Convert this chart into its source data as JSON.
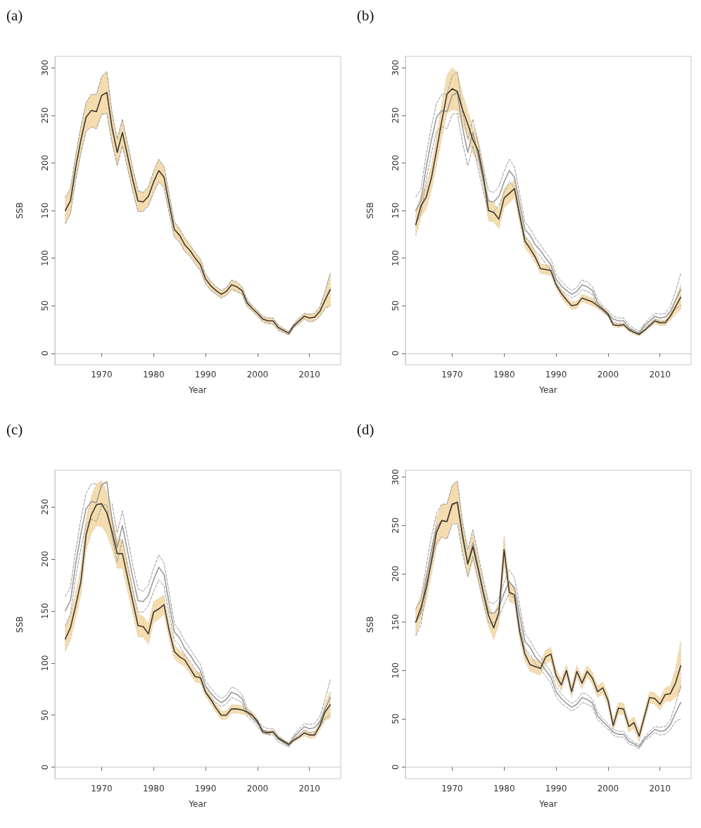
{
  "chart_data": [
    {
      "type": "line",
      "title": "(a)",
      "xlabel": "Year",
      "ylabel": "SSB",
      "xlim": [
        1961,
        2016
      ],
      "xticks": [
        1970,
        1980,
        1990,
        2000,
        2010
      ],
      "ylim": [
        -12,
        312
      ],
      "yticks": [
        0,
        50,
        100,
        150,
        200,
        250,
        300
      ],
      "marker": "none",
      "x": [
        1963,
        1964,
        1965,
        1966,
        1967,
        1968,
        1969,
        1970,
        1971,
        1972,
        1973,
        1974,
        1975,
        1976,
        1977,
        1978,
        1979,
        1980,
        1981,
        1982,
        1983,
        1984,
        1985,
        1986,
        1987,
        1988,
        1989,
        1990,
        1991,
        1992,
        1993,
        1994,
        1995,
        1996,
        1997,
        1998,
        1999,
        2000,
        2001,
        2002,
        2003,
        2004,
        2005,
        2006,
        2007,
        2008,
        2009,
        2010,
        2011,
        2012,
        2013,
        2014
      ],
      "series": [
        {
          "color": "#9a9a9a",
          "line_style": "dashed",
          "values": [
            136,
            147,
            182,
            210,
            233,
            238,
            236,
            251,
            252,
            221,
            197,
            218,
            194,
            170,
            149,
            149,
            155,
            169,
            180,
            174,
            147,
            122,
            117,
            107,
            102,
            94,
            87,
            73,
            66,
            62,
            58,
            61,
            67,
            65,
            62,
            49,
            44,
            39,
            33,
            31,
            31,
            24,
            22,
            19,
            27,
            31,
            36,
            33,
            34,
            39,
            47,
            50
          ]
        },
        {
          "color": "#9a9a9a",
          "line_style": "dashed",
          "values": [
            164,
            173,
            208,
            238,
            263,
            272,
            272,
            291,
            296,
            253,
            225,
            246,
            220,
            194,
            171,
            169,
            175,
            191,
            204,
            196,
            167,
            138,
            131,
            121,
            114,
            106,
            99,
            83,
            76,
            70,
            66,
            69,
            77,
            75,
            70,
            57,
            50,
            45,
            39,
            37,
            37,
            30,
            26,
            23,
            31,
            37,
            42,
            41,
            42,
            49,
            65,
            84
          ]
        },
        {
          "color": "#3b3631",
          "values": [
            150,
            160,
            195,
            224,
            248,
            255,
            254,
            271,
            274,
            237,
            211,
            232,
            207,
            182,
            160,
            159,
            165,
            180,
            192,
            185,
            157,
            130,
            124,
            114,
            108,
            100,
            93,
            78,
            71,
            66,
            62,
            65,
            72,
            70,
            66,
            53,
            47,
            42,
            36,
            34,
            34,
            27,
            24,
            21,
            29,
            34,
            39,
            37,
            38,
            44,
            56,
            67
          ],
          "lower": [
            136,
            147,
            182,
            210,
            233,
            238,
            236,
            251,
            252,
            221,
            197,
            218,
            194,
            170,
            149,
            149,
            155,
            169,
            180,
            174,
            147,
            122,
            117,
            107,
            102,
            94,
            87,
            73,
            66,
            62,
            58,
            61,
            67,
            65,
            62,
            49,
            44,
            39,
            33,
            31,
            31,
            24,
            22,
            19,
            27,
            31,
            36,
            33,
            34,
            39,
            47,
            50
          ],
          "upper": [
            164,
            173,
            208,
            238,
            263,
            272,
            272,
            291,
            296,
            253,
            225,
            246,
            220,
            194,
            171,
            169,
            175,
            191,
            204,
            196,
            167,
            138,
            131,
            121,
            114,
            106,
            99,
            83,
            76,
            70,
            66,
            69,
            77,
            75,
            70,
            57,
            50,
            45,
            39,
            37,
            37,
            30,
            26,
            23,
            31,
            37,
            42,
            41,
            42,
            49,
            65,
            84
          ]
        }
      ]
    },
    {
      "type": "line",
      "title": "(b)",
      "xlabel": "Year",
      "ylabel": "SSB",
      "xlim": [
        1961,
        2016
      ],
      "xticks": [
        1970,
        1980,
        1990,
        2000,
        2010
      ],
      "ylim": [
        -12,
        312
      ],
      "yticks": [
        0,
        50,
        100,
        150,
        200,
        250,
        300
      ],
      "marker": "none",
      "x": [
        1963,
        1964,
        1965,
        1966,
        1967,
        1968,
        1969,
        1970,
        1971,
        1972,
        1973,
        1974,
        1975,
        1976,
        1977,
        1978,
        1979,
        1980,
        1981,
        1982,
        1983,
        1984,
        1985,
        1986,
        1987,
        1988,
        1989,
        1990,
        1991,
        1992,
        1993,
        1994,
        1995,
        1996,
        1997,
        1998,
        1999,
        2000,
        2001,
        2002,
        2003,
        2004,
        2005,
        2006,
        2007,
        2008,
        2009,
        2010,
        2011,
        2012,
        2013,
        2014
      ],
      "series": [
        {
          "color": "#9a9a9a",
          "line_style": "dashed",
          "values": [
            136,
            147,
            182,
            210,
            233,
            238,
            236,
            251,
            252,
            221,
            197,
            218,
            194,
            170,
            149,
            149,
            155,
            169,
            180,
            174,
            147,
            122,
            117,
            107,
            102,
            94,
            87,
            73,
            66,
            62,
            58,
            61,
            67,
            65,
            62,
            49,
            44,
            39,
            33,
            31,
            31,
            24,
            22,
            19,
            27,
            31,
            36,
            33,
            34,
            39,
            47,
            50
          ]
        },
        {
          "color": "#9a9a9a",
          "line_style": "dashed",
          "values": [
            164,
            173,
            208,
            238,
            263,
            272,
            272,
            291,
            296,
            253,
            225,
            246,
            220,
            194,
            171,
            169,
            175,
            191,
            204,
            196,
            167,
            138,
            131,
            121,
            114,
            106,
            99,
            83,
            76,
            70,
            66,
            69,
            77,
            75,
            70,
            57,
            50,
            45,
            39,
            37,
            37,
            30,
            26,
            23,
            31,
            37,
            42,
            41,
            42,
            49,
            65,
            84
          ]
        },
        {
          "color": "#9a9a9a",
          "values": [
            150,
            160,
            195,
            224,
            248,
            255,
            254,
            271,
            274,
            237,
            211,
            232,
            207,
            182,
            160,
            159,
            165,
            180,
            192,
            185,
            157,
            130,
            124,
            114,
            108,
            100,
            93,
            78,
            71,
            66,
            62,
            65,
            72,
            70,
            66,
            53,
            47,
            42,
            36,
            34,
            34,
            27,
            24,
            21,
            29,
            34,
            39,
            37,
            38,
            44,
            56,
            67
          ]
        },
        {
          "color": "#3b3631",
          "values": [
            135,
            155,
            164,
            184,
            213,
            244,
            272,
            278,
            275,
            256,
            241,
            224,
            213,
            186,
            150,
            148,
            141,
            163,
            168,
            173,
            145,
            118,
            110,
            101,
            89,
            88,
            87,
            72,
            63,
            56,
            50,
            51,
            58,
            56,
            54,
            50,
            46,
            41,
            30,
            29,
            30,
            25,
            22,
            20,
            24,
            29,
            34,
            32,
            32,
            39,
            49,
            59
          ],
          "lower": [
            123,
            143,
            152,
            171,
            198,
            226,
            252,
            256,
            255,
            240,
            227,
            210,
            200,
            174,
            139,
            138,
            131,
            153,
            158,
            164,
            137,
            111,
            104,
            95,
            84,
            83,
            82,
            68,
            59,
            52,
            46,
            47,
            54,
            52,
            50,
            47,
            43,
            38,
            28,
            27,
            28,
            23,
            20,
            18,
            22,
            27,
            31,
            29,
            29,
            35,
            41,
            46
          ],
          "upper": [
            147,
            167,
            176,
            197,
            228,
            262,
            292,
            300,
            295,
            272,
            255,
            238,
            226,
            198,
            161,
            158,
            151,
            173,
            178,
            182,
            153,
            125,
            116,
            107,
            94,
            93,
            92,
            76,
            67,
            60,
            54,
            55,
            62,
            60,
            58,
            53,
            49,
            44,
            32,
            31,
            32,
            27,
            24,
            22,
            26,
            31,
            37,
            35,
            35,
            43,
            57,
            72
          ]
        }
      ]
    },
    {
      "type": "line",
      "title": "(c)",
      "xlabel": "Year",
      "ylabel": "SSB",
      "xlim": [
        1961,
        2016
      ],
      "xticks": [
        1970,
        1980,
        1990,
        2000,
        2010
      ],
      "ylim": [
        -11,
        285
      ],
      "yticks": [
        0,
        50,
        100,
        150,
        200,
        250
      ],
      "marker": "none",
      "x": [
        1963,
        1964,
        1965,
        1966,
        1967,
        1968,
        1969,
        1970,
        1971,
        1972,
        1973,
        1974,
        1975,
        1976,
        1977,
        1978,
        1979,
        1980,
        1981,
        1982,
        1983,
        1984,
        1985,
        1986,
        1987,
        1988,
        1989,
        1990,
        1991,
        1992,
        1993,
        1994,
        1995,
        1996,
        1997,
        1998,
        1999,
        2000,
        2001,
        2002,
        2003,
        2004,
        2005,
        2006,
        2007,
        2008,
        2009,
        2010,
        2011,
        2012,
        2013,
        2014
      ],
      "series": [
        {
          "color": "#9a9a9a",
          "line_style": "dashed",
          "values": [
            136,
            147,
            182,
            210,
            233,
            238,
            236,
            251,
            252,
            221,
            197,
            218,
            194,
            170,
            149,
            149,
            155,
            169,
            180,
            174,
            147,
            122,
            117,
            107,
            102,
            94,
            87,
            73,
            66,
            62,
            58,
            61,
            67,
            65,
            62,
            49,
            44,
            39,
            33,
            31,
            31,
            24,
            22,
            19,
            27,
            31,
            36,
            33,
            34,
            39,
            47,
            50
          ]
        },
        {
          "color": "#9a9a9a",
          "line_style": "dashed",
          "values": [
            164,
            173,
            208,
            238,
            263,
            272,
            272,
            null,
            null,
            253,
            225,
            246,
            220,
            194,
            171,
            169,
            175,
            191,
            204,
            196,
            167,
            138,
            131,
            121,
            114,
            106,
            99,
            83,
            76,
            70,
            66,
            69,
            77,
            75,
            70,
            57,
            50,
            45,
            39,
            37,
            37,
            30,
            26,
            23,
            31,
            37,
            42,
            41,
            42,
            49,
            65,
            84
          ]
        },
        {
          "color": "#9a9a9a",
          "values": [
            150,
            160,
            195,
            224,
            248,
            255,
            254,
            271,
            274,
            237,
            211,
            232,
            207,
            182,
            160,
            159,
            165,
            180,
            192,
            185,
            157,
            130,
            124,
            114,
            108,
            100,
            93,
            78,
            71,
            66,
            62,
            65,
            72,
            70,
            66,
            53,
            47,
            42,
            36,
            34,
            34,
            27,
            24,
            21,
            29,
            34,
            39,
            37,
            38,
            44,
            56,
            67
          ]
        },
        {
          "color": "#3b3631",
          "values": [
            123,
            134,
            155,
            178,
            223,
            242,
            252,
            253,
            244,
            226,
            205,
            205,
            182,
            159,
            136,
            135,
            128,
            149,
            152,
            156,
            131,
            111,
            106,
            103,
            95,
            87,
            86,
            72,
            65,
            57,
            50,
            50,
            56,
            56,
            55,
            53,
            50,
            44,
            34,
            33,
            34,
            28,
            25,
            22,
            26,
            29,
            33,
            31,
            31,
            40,
            53,
            60
          ],
          "lower": [
            111,
            122,
            143,
            165,
            208,
            224,
            232,
            231,
            224,
            210,
            191,
            191,
            169,
            147,
            125,
            125,
            118,
            139,
            142,
            147,
            123,
            104,
            100,
            97,
            90,
            82,
            81,
            68,
            61,
            53,
            46,
            46,
            52,
            52,
            51,
            50,
            47,
            41,
            32,
            31,
            32,
            26,
            23,
            20,
            24,
            27,
            30,
            28,
            28,
            36,
            45,
            47
          ],
          "upper": [
            135,
            146,
            167,
            191,
            238,
            260,
            272,
            275,
            264,
            242,
            219,
            219,
            195,
            171,
            147,
            145,
            138,
            159,
            162,
            165,
            139,
            118,
            112,
            109,
            100,
            92,
            91,
            76,
            69,
            61,
            54,
            54,
            60,
            60,
            59,
            56,
            53,
            47,
            36,
            35,
            36,
            30,
            27,
            24,
            28,
            31,
            36,
            34,
            34,
            44,
            61,
            73
          ]
        }
      ]
    },
    {
      "type": "line",
      "title": "(d)",
      "xlabel": "Year",
      "ylabel": "SSB",
      "xlim": [
        1961,
        2016
      ],
      "xticks": [
        1970,
        1980,
        1990,
        2000,
        2010
      ],
      "ylim": [
        -12,
        307
      ],
      "yticks": [
        0,
        50,
        100,
        150,
        200,
        250,
        300
      ],
      "marker": "none",
      "x": [
        1963,
        1964,
        1965,
        1966,
        1967,
        1968,
        1969,
        1970,
        1971,
        1972,
        1973,
        1974,
        1975,
        1976,
        1977,
        1978,
        1979,
        1980,
        1981,
        1982,
        1983,
        1984,
        1985,
        1986,
        1987,
        1988,
        1989,
        1990,
        1991,
        1992,
        1993,
        1994,
        1995,
        1996,
        1997,
        1998,
        1999,
        2000,
        2001,
        2002,
        2003,
        2004,
        2005,
        2006,
        2007,
        2008,
        2009,
        2010,
        2011,
        2012,
        2013,
        2014
      ],
      "series": [
        {
          "color": "#9a9a9a",
          "line_style": "dashed",
          "values": [
            136,
            147,
            182,
            210,
            233,
            238,
            236,
            251,
            252,
            221,
            197,
            218,
            194,
            170,
            149,
            149,
            155,
            169,
            180,
            174,
            147,
            122,
            117,
            107,
            102,
            94,
            87,
            73,
            66,
            62,
            58,
            61,
            67,
            65,
            62,
            49,
            44,
            39,
            33,
            31,
            31,
            24,
            22,
            19,
            27,
            31,
            36,
            33,
            34,
            39,
            47,
            50
          ]
        },
        {
          "color": "#9a9a9a",
          "line_style": "dashed",
          "values": [
            164,
            173,
            208,
            238,
            263,
            272,
            272,
            291,
            296,
            253,
            225,
            246,
            220,
            194,
            171,
            169,
            175,
            191,
            204,
            196,
            167,
            138,
            131,
            121,
            114,
            106,
            99,
            83,
            76,
            70,
            66,
            69,
            77,
            75,
            70,
            57,
            50,
            45,
            39,
            37,
            37,
            30,
            26,
            23,
            31,
            37,
            42,
            41,
            42,
            49,
            65,
            84
          ]
        },
        {
          "color": "#9a9a9a",
          "values": [
            150,
            160,
            195,
            224,
            248,
            255,
            254,
            271,
            274,
            237,
            211,
            232,
            207,
            182,
            160,
            159,
            165,
            180,
            192,
            185,
            157,
            130,
            124,
            114,
            108,
            100,
            93,
            78,
            71,
            66,
            62,
            65,
            72,
            70,
            66,
            53,
            47,
            42,
            36,
            34,
            34,
            27,
            24,
            21,
            29,
            34,
            39,
            37,
            38,
            44,
            56,
            67
          ]
        },
        {
          "color": "#3b3631",
          "values": [
            150,
            165,
            185,
            213,
            243,
            255,
            254,
            272,
            274,
            240,
            210,
            228,
            205,
            180,
            157,
            144,
            160,
            225,
            181,
            178,
            140,
            117,
            106,
            104,
            102,
            114,
            117,
            95,
            85,
            100,
            78,
            99,
            87,
            99,
            92,
            78,
            82,
            69,
            43,
            61,
            60,
            42,
            46,
            32,
            52,
            72,
            71,
            65,
            75,
            76,
            87,
            105
          ],
          "lower": [
            136,
            152,
            172,
            199,
            228,
            238,
            236,
            252,
            252,
            224,
            196,
            214,
            192,
            168,
            146,
            132,
            148,
            210,
            171,
            169,
            132,
            110,
            99,
            97,
            95,
            107,
            110,
            89,
            79,
            94,
            72,
            93,
            81,
            93,
            86,
            72,
            76,
            63,
            37,
            55,
            54,
            36,
            40,
            26,
            46,
            66,
            65,
            59,
            68,
            68,
            72,
            80
          ],
          "upper": [
            164,
            178,
            198,
            227,
            258,
            272,
            272,
            292,
            296,
            256,
            224,
            242,
            218,
            192,
            168,
            156,
            172,
            240,
            191,
            187,
            148,
            124,
            113,
            111,
            109,
            121,
            124,
            101,
            91,
            106,
            84,
            105,
            93,
            105,
            98,
            84,
            88,
            75,
            49,
            67,
            66,
            48,
            52,
            38,
            58,
            78,
            77,
            71,
            82,
            84,
            102,
            130
          ]
        }
      ]
    }
  ]
}
